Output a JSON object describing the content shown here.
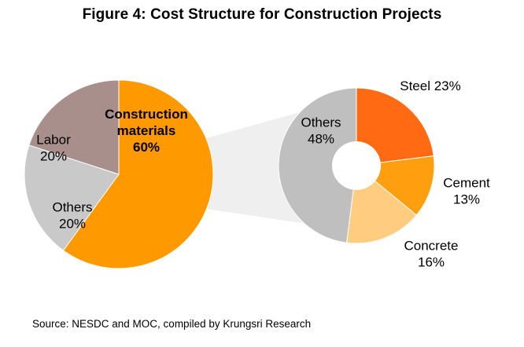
{
  "title": "Figure 4: Cost Structure for Construction Projects",
  "source": "Source: NESDC  and MOC, compiled by Krungsri Research",
  "chart_data": [
    {
      "type": "pie",
      "slices": [
        {
          "label_lines": [
            "Construction",
            "materials",
            "60%"
          ],
          "value": 60,
          "color": "#FF9900"
        },
        {
          "label_lines": [
            "Others",
            "20%"
          ],
          "value": 20,
          "color": "#C9C9C9"
        },
        {
          "label_lines": [
            "Labor",
            "20%"
          ],
          "value": 20,
          "color": "#A88F8C"
        }
      ]
    },
    {
      "type": "pie",
      "donut": true,
      "slices": [
        {
          "label_lines": [
            "Steel 23%"
          ],
          "value": 23,
          "color": "#FF6A13"
        },
        {
          "label_lines": [
            "Cement",
            "13%"
          ],
          "value": 13,
          "color": "#FF9F0F"
        },
        {
          "label_lines": [
            "Concrete",
            "16%"
          ],
          "value": 16,
          "color": "#FFCC80"
        },
        {
          "label_lines": [
            "Others",
            "48%"
          ],
          "value": 48,
          "color": "#BFBFBF"
        }
      ]
    }
  ]
}
